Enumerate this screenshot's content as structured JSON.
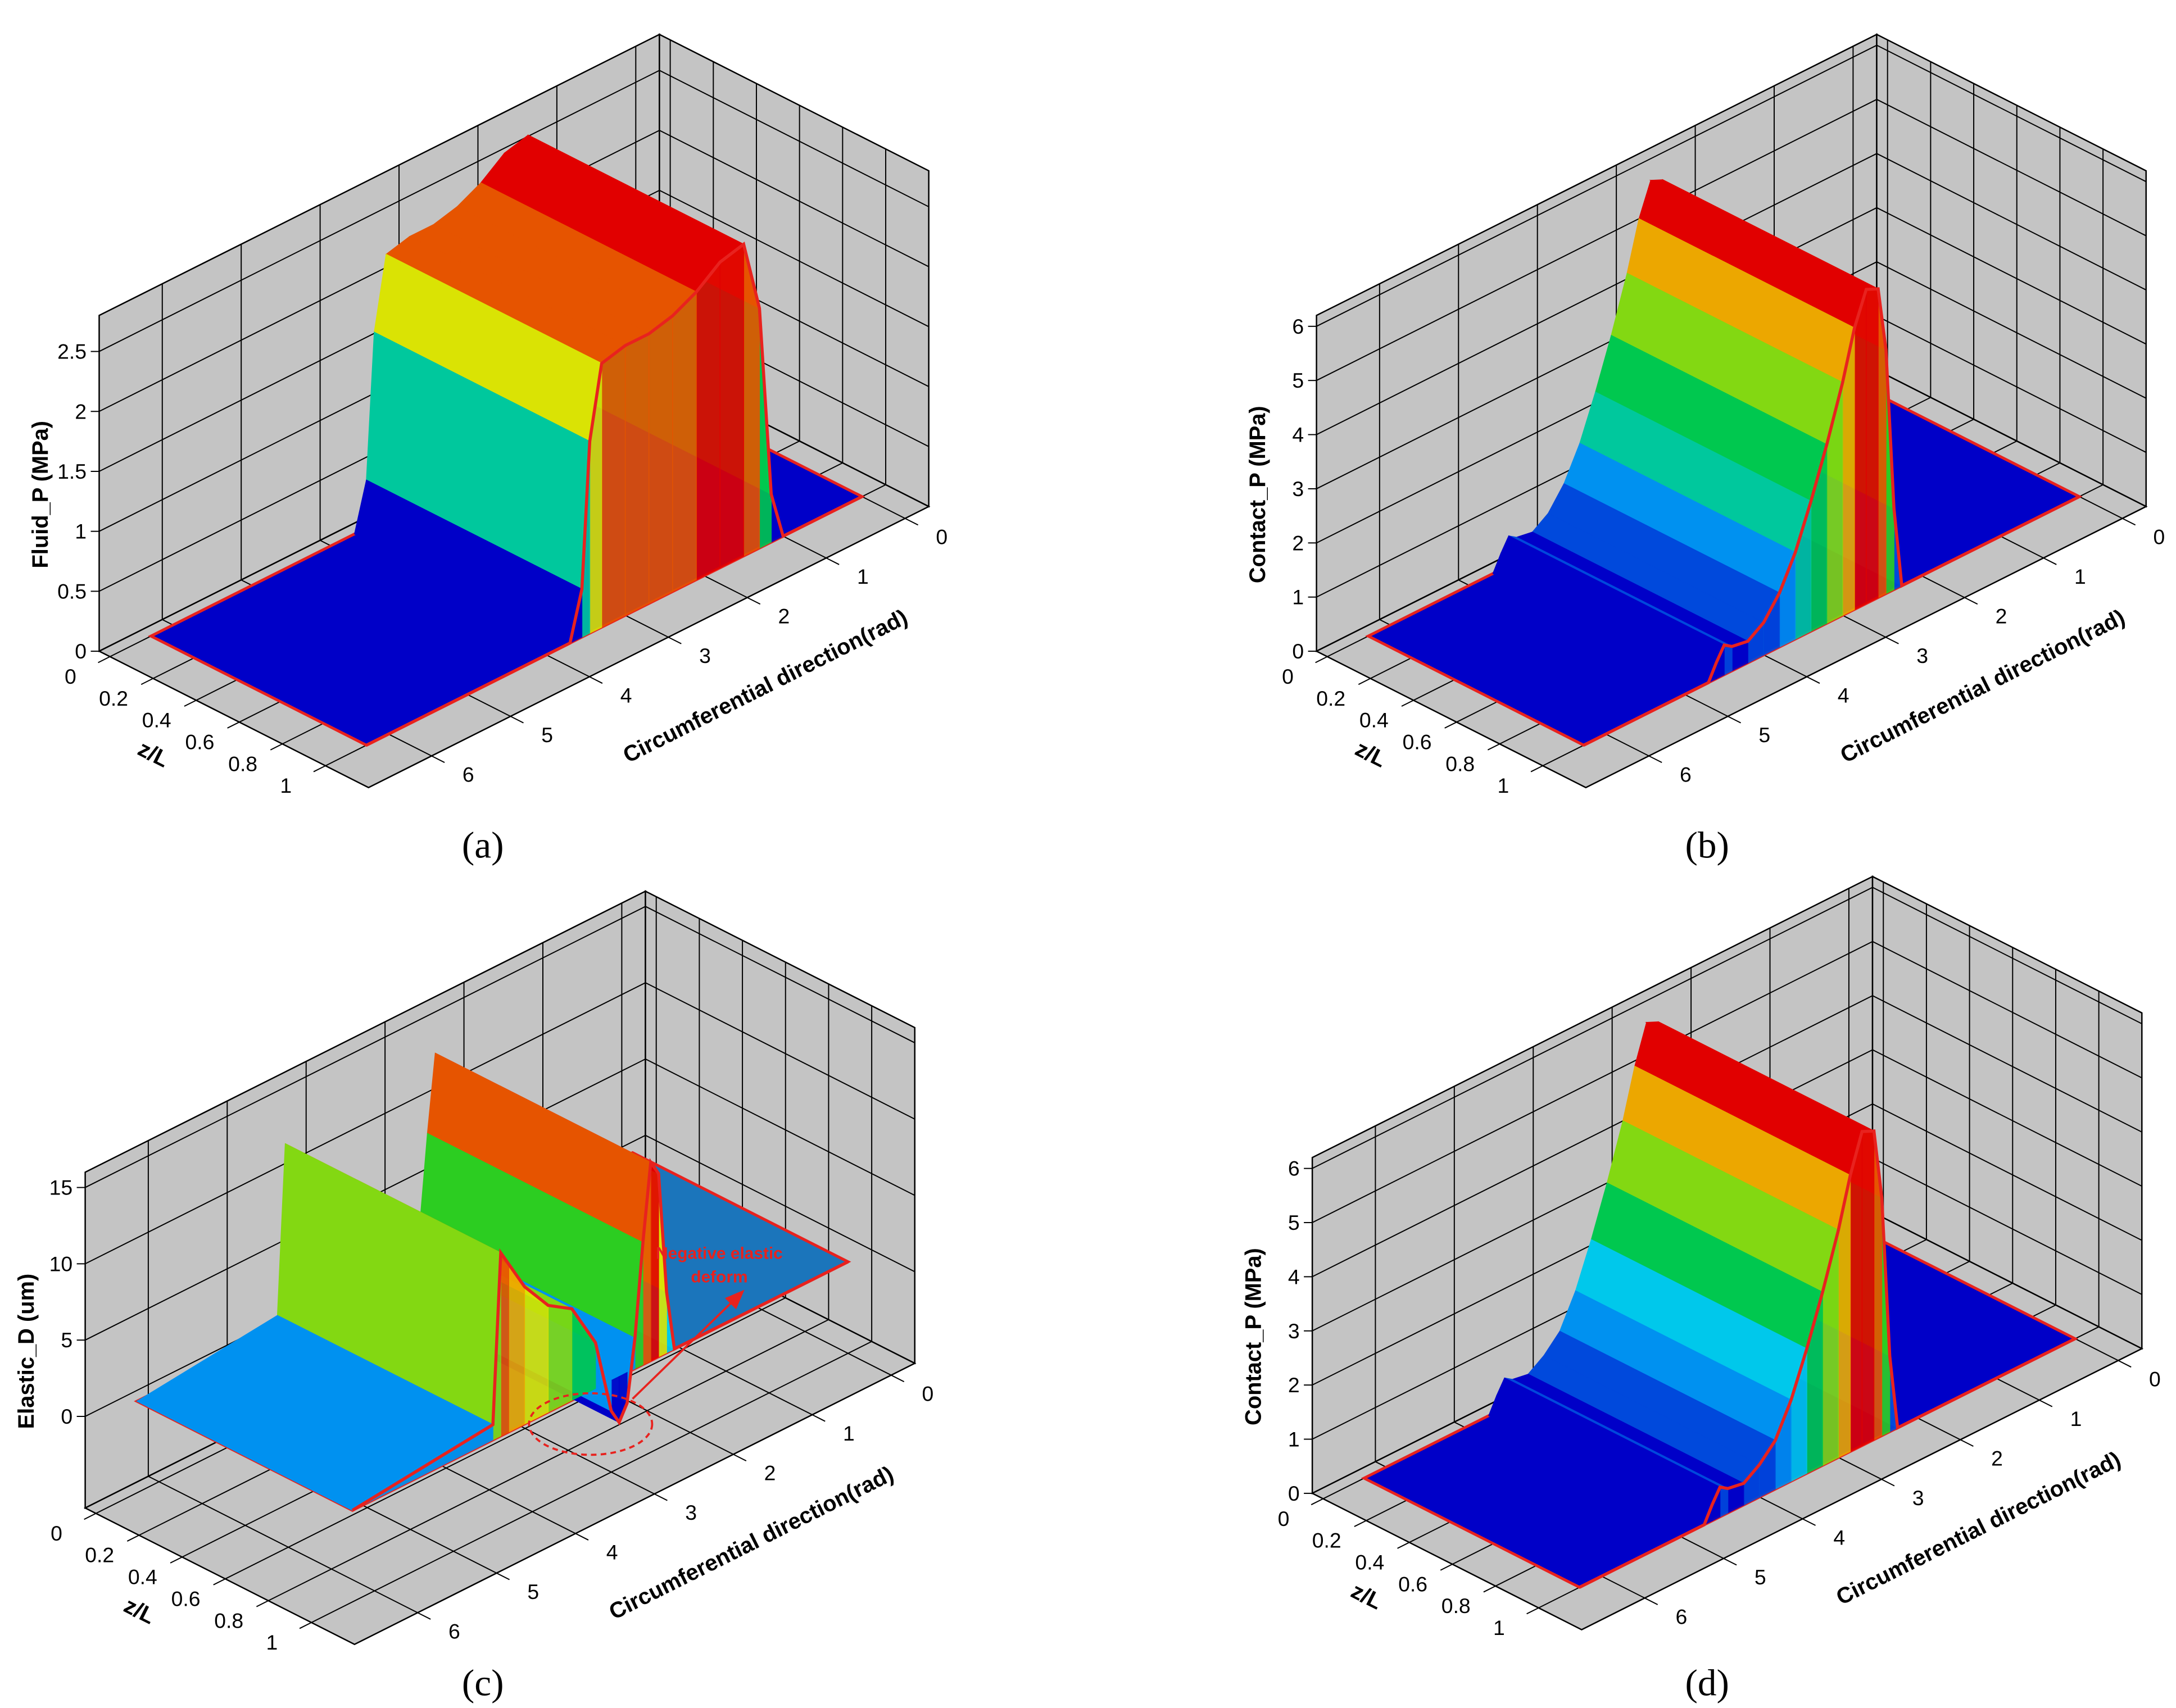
{
  "chart_data": [
    {
      "type": "surface3d",
      "caption": "(a)",
      "x_label": "Circumferential direction(rad)",
      "z_label": "z/L",
      "y_label": "Fluid_P (MPa)",
      "x": [
        0,
        1.0,
        1.15,
        1.3,
        1.5,
        1.8,
        2.1,
        2.4,
        2.7,
        3.0,
        3.3,
        3.45,
        3.55,
        3.7,
        6.28
      ],
      "values": [
        0,
        0,
        0.4,
        2.0,
        2.6,
        2.55,
        2.4,
        2.3,
        2.25,
        2.25,
        2.2,
        1.6,
        0.4,
        0,
        0
      ],
      "xlim": [
        -0.3,
        6.8
      ],
      "xticks": [
        0,
        1,
        2,
        3,
        4,
        5,
        6
      ],
      "zlim": [
        -0.05,
        1.2
      ],
      "zticks": [
        0,
        0.2,
        0.4,
        0.6,
        0.8,
        1
      ],
      "ylim": [
        0,
        2.8
      ],
      "yticks": [
        0,
        0.5,
        1,
        1.5,
        2,
        2.5
      ],
      "plane_color": "#0000c8",
      "outline_color": "#e8221e",
      "wall_color": "#c4c4c4"
    },
    {
      "type": "surface3d",
      "caption": "(b)",
      "x_label": "Circumferential direction(rad)",
      "z_label": "z/L",
      "y_label": "Contact_P (MPa)",
      "x": [
        0,
        2.25,
        2.35,
        2.45,
        2.55,
        2.7,
        2.85,
        3.0,
        3.2,
        3.4,
        3.6,
        3.8,
        4.0,
        4.2,
        4.4,
        4.5,
        4.6,
        4.7,
        6.28
      ],
      "values": [
        0,
        0,
        1.5,
        4.5,
        5.7,
        5.8,
        5.2,
        4.3,
        3.3,
        2.4,
        1.6,
        1.0,
        0.6,
        0.4,
        0.45,
        0.55,
        0.3,
        0,
        0
      ],
      "xlim": [
        -0.3,
        6.8
      ],
      "xticks": [
        0,
        1,
        2,
        3,
        4,
        5,
        6
      ],
      "zlim": [
        -0.05,
        1.2
      ],
      "zticks": [
        0,
        0.2,
        0.4,
        0.6,
        0.8,
        1
      ],
      "ylim": [
        0,
        6.2
      ],
      "yticks": [
        0,
        1,
        2,
        3,
        4,
        5,
        6
      ],
      "plane_color": "#0000c8",
      "outline_color": "#e8221e",
      "wall_color": "#c4c4c4"
    },
    {
      "type": "surface3d",
      "caption": "(c)",
      "x_label": "Circumferential direction(rad)",
      "z_label": "z/L",
      "y_label": "Elastic_D (um)",
      "x": [
        0,
        2.2,
        2.3,
        2.4,
        2.5,
        2.6,
        2.7,
        2.8,
        2.9,
        3.0,
        3.2,
        3.5,
        3.8,
        4.1,
        4.3,
        4.4,
        4.5,
        6.28
      ],
      "values": [
        0,
        0,
        4,
        12,
        13,
        8,
        2,
        -2,
        -3,
        -2,
        3,
        6,
        7,
        9,
        11,
        12,
        1,
        0
      ],
      "xlim": [
        -0.3,
        6.8
      ],
      "xticks": [
        0,
        1,
        2,
        3,
        4,
        5,
        6
      ],
      "zlim": [
        -0.05,
        1.2
      ],
      "zticks": [
        0,
        0.2,
        0.4,
        0.6,
        0.8,
        1
      ],
      "ylim": [
        -6,
        16
      ],
      "yticks": [
        0,
        5,
        10,
        15
      ],
      "plane_color": "#1b75bb",
      "outline_color": "#e8221e",
      "wall_color": "#c4c4c4",
      "annotation": {
        "lines": [
          "Negative elastic",
          "deform"
        ],
        "color": "#e8221e"
      }
    },
    {
      "type": "surface3d",
      "caption": "(d)",
      "x_label": "Circumferential direction(rad)",
      "z_label": "z/L",
      "y_label": "Contact_P (MPa)",
      "x": [
        0,
        2.25,
        2.35,
        2.45,
        2.55,
        2.7,
        2.85,
        3.0,
        3.2,
        3.4,
        3.6,
        3.8,
        4.0,
        4.2,
        4.4,
        4.5,
        4.6,
        4.7,
        6.28
      ],
      "values": [
        0,
        0,
        1.4,
        4.4,
        5.7,
        5.8,
        5.1,
        4.2,
        3.2,
        2.3,
        1.5,
        0.9,
        0.6,
        0.4,
        0.45,
        0.55,
        0.3,
        0,
        0
      ],
      "xlim": [
        -0.3,
        6.8
      ],
      "xticks": [
        0,
        1,
        2,
        3,
        4,
        5,
        6
      ],
      "zlim": [
        -0.05,
        1.2
      ],
      "zticks": [
        0,
        0.2,
        0.4,
        0.6,
        0.8,
        1
      ],
      "ylim": [
        0,
        6.2
      ],
      "yticks": [
        0,
        1,
        2,
        3,
        4,
        5,
        6
      ],
      "plane_color": "#0000c8",
      "outline_color": "#e8221e",
      "wall_color": "#c4c4c4"
    }
  ]
}
